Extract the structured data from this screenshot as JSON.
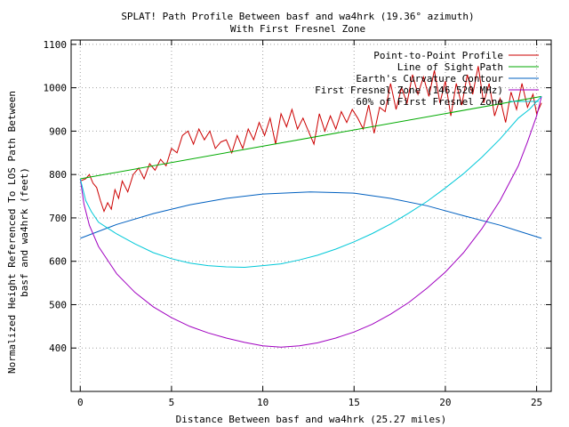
{
  "chart_data": {
    "type": "line",
    "title": "SPLAT! Path Profile Between basf and wa4hrk (19.36° azimuth)",
    "subtitle": "With First Fresnel Zone",
    "xlabel": "Distance Between basf and wa4hrk (25.27 miles)",
    "ylabel_line1": "Normalized Height Referenced To LOS Path Between",
    "ylabel_line2": "basf and wa4hrk (feet)",
    "xlim": [
      -0.5,
      25.8
    ],
    "ylim": [
      300,
      1110
    ],
    "xticks": [
      0,
      5,
      10,
      15,
      20,
      25
    ],
    "yticks": [
      400,
      500,
      600,
      700,
      800,
      900,
      1000,
      1100
    ],
    "grid": true,
    "legend_position": "top-right",
    "series": [
      {
        "name": "Point-to-Point Profile",
        "color": "#cc0000",
        "x": [
          0,
          0.3,
          0.5,
          0.7,
          0.9,
          1.1,
          1.3,
          1.5,
          1.7,
          1.9,
          2.1,
          2.3,
          2.6,
          2.9,
          3.2,
          3.5,
          3.8,
          4.1,
          4.4,
          4.7,
          5.0,
          5.3,
          5.6,
          5.9,
          6.2,
          6.5,
          6.8,
          7.1,
          7.4,
          7.7,
          8.0,
          8.3,
          8.6,
          8.9,
          9.2,
          9.5,
          9.8,
          10.1,
          10.4,
          10.7,
          11.0,
          11.3,
          11.6,
          11.9,
          12.2,
          12.5,
          12.8,
          13.1,
          13.4,
          13.7,
          14.0,
          14.3,
          14.6,
          14.9,
          15.2,
          15.5,
          15.8,
          16.1,
          16.4,
          16.7,
          17.0,
          17.3,
          17.6,
          17.9,
          18.2,
          18.5,
          18.8,
          19.1,
          19.4,
          19.7,
          20.0,
          20.3,
          20.6,
          20.9,
          21.2,
          21.5,
          21.8,
          22.1,
          22.4,
          22.7,
          23.0,
          23.3,
          23.6,
          23.9,
          24.2,
          24.5,
          24.8,
          25.0,
          25.27
        ],
        "y": [
          785,
          790,
          800,
          780,
          770,
          740,
          715,
          735,
          720,
          765,
          745,
          785,
          760,
          800,
          815,
          790,
          825,
          810,
          835,
          820,
          860,
          850,
          890,
          900,
          870,
          905,
          880,
          900,
          860,
          875,
          880,
          850,
          890,
          860,
          905,
          880,
          920,
          890,
          930,
          870,
          940,
          910,
          950,
          905,
          930,
          900,
          870,
          940,
          900,
          935,
          905,
          945,
          920,
          950,
          930,
          905,
          960,
          895,
          955,
          945,
          1010,
          950,
          1000,
          965,
          1030,
          985,
          1025,
          980,
          1040,
          965,
          1015,
          935,
          1010,
          960,
          1030,
          985,
          1050,
          965,
          1010,
          935,
          975,
          920,
          990,
          950,
          1010,
          955,
          985,
          940,
          965
        ]
      },
      {
        "name": "Line of Sight Path",
        "color": "#00aa00",
        "x": [
          0,
          25.27
        ],
        "y": [
          790,
          980
        ]
      },
      {
        "name": "Earth's Curvature Contour",
        "color": "#0060c0",
        "x": [
          0,
          2,
          4,
          6,
          8,
          10,
          12.6,
          15,
          17,
          19,
          21,
          23,
          25.27
        ],
        "y": [
          653,
          685,
          710,
          730,
          745,
          755,
          760,
          757,
          745,
          728,
          705,
          683,
          653
        ]
      },
      {
        "name": "First Fresnel Zone (146.520 MHz)",
        "color": "#a000c0",
        "x": [
          0,
          0.2,
          0.5,
          1,
          2,
          3,
          4,
          5,
          6,
          7,
          8,
          9,
          10,
          11,
          12,
          13,
          14,
          15,
          16,
          17,
          18,
          19,
          20,
          21,
          22,
          23,
          24,
          24.5,
          25,
          25.27
        ],
        "y": [
          790,
          732,
          683,
          634,
          571,
          528,
          495,
          470,
          450,
          435,
          423,
          413,
          405,
          402,
          405,
          412,
          423,
          437,
          455,
          478,
          505,
          538,
          575,
          620,
          675,
          740,
          820,
          875,
          935,
          980
        ]
      },
      {
        "name": "60% of First Fresnel Zone",
        "color": "#00c8d8",
        "x": [
          0,
          0.3,
          0.6,
          1,
          2,
          3,
          4,
          5,
          6,
          7,
          8,
          9,
          10,
          11,
          12,
          13,
          14,
          15,
          16,
          17,
          18,
          19,
          20,
          21,
          22,
          23,
          24,
          24.6,
          25,
          25.27
        ],
        "y": [
          790,
          740,
          715,
          690,
          663,
          640,
          620,
          606,
          596,
          590,
          587,
          586,
          590,
          594,
          603,
          614,
          628,
          645,
          664,
          686,
          711,
          738,
          769,
          802,
          840,
          882,
          930,
          950,
          968,
          980
        ]
      }
    ]
  }
}
